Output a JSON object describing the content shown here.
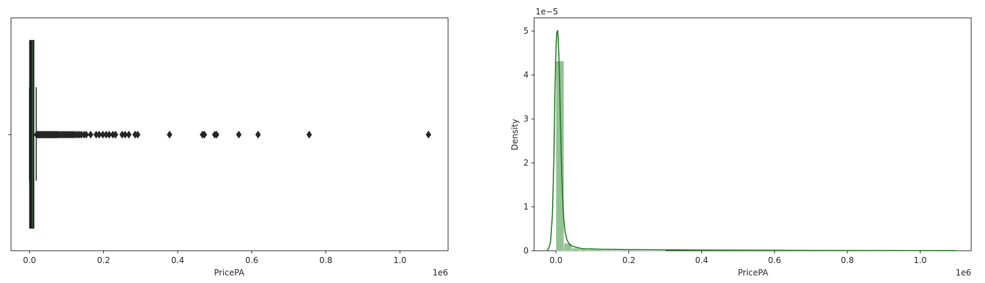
{
  "chart_data": [
    {
      "type": "box",
      "title": "",
      "xlabel": "PricePA",
      "ylabel": "",
      "x_offset_text": "1e6",
      "xlim": [
        -0.05,
        1.13
      ],
      "x_ticks": [
        0.0,
        0.2,
        0.4,
        0.6,
        0.8,
        1.0
      ],
      "x_tick_labels": [
        "0.0",
        "0.2",
        "0.4",
        "0.6",
        "0.8",
        "1.0"
      ],
      "box": {
        "whisker_low": 0.0,
        "q1": 0.0005,
        "median": 0.004,
        "q3": 0.0115,
        "whisker_high": 0.018
      },
      "outliers": [
        0.019,
        0.022,
        0.025,
        0.028,
        0.031,
        0.034,
        0.037,
        0.04,
        0.043,
        0.046,
        0.049,
        0.052,
        0.055,
        0.058,
        0.061,
        0.064,
        0.067,
        0.07,
        0.073,
        0.076,
        0.08,
        0.084,
        0.088,
        0.092,
        0.096,
        0.1,
        0.104,
        0.108,
        0.112,
        0.116,
        0.12,
        0.125,
        0.13,
        0.135,
        0.14,
        0.147,
        0.153,
        0.165,
        0.18,
        0.188,
        0.198,
        0.207,
        0.215,
        0.225,
        0.232,
        0.25,
        0.258,
        0.268,
        0.285,
        0.292,
        0.378,
        0.467,
        0.472,
        0.5,
        0.505,
        0.565,
        0.617,
        0.755,
        1.077
      ],
      "color": "#1a1a1a"
    },
    {
      "type": "histogram+kde",
      "title": "",
      "xlabel": "PricePA",
      "ylabel": "Density",
      "x_offset_text": "1e6",
      "y_offset_text": "1e−5",
      "xlim": [
        -0.06,
        1.14
      ],
      "ylim": [
        0,
        5.3
      ],
      "x_ticks": [
        0.0,
        0.2,
        0.4,
        0.6,
        0.8,
        1.0
      ],
      "x_tick_labels": [
        "0.0",
        "0.2",
        "0.4",
        "0.6",
        "0.8",
        "1.0"
      ],
      "y_ticks": [
        0,
        1,
        2,
        3,
        4,
        5
      ],
      "y_tick_labels": [
        "0",
        "1",
        "2",
        "3",
        "4",
        "5"
      ],
      "bins": [
        {
          "x0": 0.0,
          "x1": 0.0215,
          "value": 4.32
        },
        {
          "x0": 0.0215,
          "x1": 0.043,
          "value": 0.17
        },
        {
          "x0": 0.043,
          "x1": 0.0645,
          "value": 0.06
        },
        {
          "x0": 0.0645,
          "x1": 0.086,
          "value": 0.035
        },
        {
          "x0": 0.086,
          "x1": 0.1075,
          "value": 0.025
        },
        {
          "x0": 0.1075,
          "x1": 0.129,
          "value": 0.02
        },
        {
          "x0": 0.129,
          "x1": 0.1505,
          "value": 0.015
        },
        {
          "x0": 0.1505,
          "x1": 0.172,
          "value": 0.012
        },
        {
          "x0": 0.172,
          "x1": 0.1935,
          "value": 0.01
        },
        {
          "x0": 0.1935,
          "x1": 0.215,
          "value": 0.01
        },
        {
          "x0": 0.215,
          "x1": 0.2365,
          "value": 0.008
        },
        {
          "x0": 0.2365,
          "x1": 0.258,
          "value": 0.006
        },
        {
          "x0": 0.258,
          "x1": 0.2795,
          "value": 0.005
        },
        {
          "x0": 0.2795,
          "x1": 0.301,
          "value": 0.004
        }
      ],
      "kde": {
        "x": [
          -0.025,
          -0.02,
          -0.015,
          -0.01,
          -0.006,
          -0.003,
          0.0,
          0.002,
          0.004,
          0.006,
          0.008,
          0.01,
          0.012,
          0.015,
          0.018,
          0.021,
          0.025,
          0.03,
          0.035,
          0.04,
          0.05,
          0.06,
          0.07,
          0.08,
          0.1,
          0.12,
          0.15,
          0.2,
          0.3,
          0.4,
          0.5,
          0.6,
          0.7,
          0.8,
          0.9,
          1.0,
          1.1
        ],
        "y": [
          0.0,
          0.05,
          0.2,
          0.8,
          2.0,
          3.6,
          4.6,
          4.95,
          5.02,
          4.85,
          4.4,
          3.8,
          3.0,
          2.0,
          1.25,
          0.75,
          0.42,
          0.25,
          0.17,
          0.12,
          0.09,
          0.07,
          0.05,
          0.045,
          0.04,
          0.035,
          0.03,
          0.025,
          0.02,
          0.015,
          0.012,
          0.01,
          0.008,
          0.006,
          0.005,
          0.004,
          0.003
        ]
      },
      "bar_color": "#8fbf8f",
      "line_color": "#1e7a1e"
    }
  ]
}
